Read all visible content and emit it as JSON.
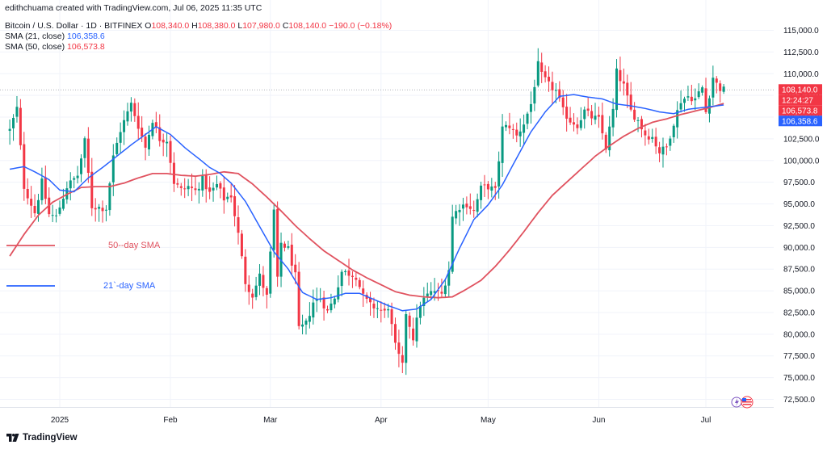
{
  "header": {
    "top_line": "edithchuama created with TradingView.com, Jul 06, 2025 11:35 UTC",
    "symbol": "Bitcoin / U.S. Dollar · 1D · BITFINEX",
    "ohlc": {
      "o_label": "O",
      "o": "108,340.0",
      "h_label": "H",
      "h": "108,380.0",
      "l_label": "L",
      "l": "107,980.0",
      "c_label": "C",
      "c": "108,140.0",
      "change": "−190.0 (−0.18%)"
    },
    "sma21_label": "SMA (21, close)",
    "sma21_value": "106,358.6",
    "sma50_label": "SMA (50, close)",
    "sma50_value": "106,573.8"
  },
  "annotations": {
    "sma50_text": "50--day SMA",
    "sma21_text": "21`-day SMA"
  },
  "price_badges": [
    {
      "text": "108,140.0",
      "bg": "#f23645",
      "fg": "#ffffff"
    },
    {
      "text": "12:24:27",
      "bg": "#f23645",
      "fg": "#ffffff"
    },
    {
      "text": "106,573.8",
      "bg": "#f23645",
      "fg": "#ffffff"
    },
    {
      "text": "106,358.6",
      "bg": "#2962ff",
      "fg": "#ffffff"
    }
  ],
  "footer": {
    "brand": "TradingView"
  },
  "colors": {
    "up": "#089981",
    "down": "#f23645",
    "sma21": "#2962ff",
    "sma50": "#e0525f",
    "grid": "#f0f3fa"
  },
  "chart_data": {
    "type": "candlestick",
    "title": "Bitcoin / U.S. Dollar · 1D · BITFINEX",
    "ylim": [
      70500,
      117000
    ],
    "y_ticks": [
      72500,
      75000,
      77500,
      80000,
      82500,
      85000,
      87500,
      90000,
      92500,
      95000,
      97500,
      100000,
      102500,
      105000,
      107500,
      110000,
      112500,
      115000
    ],
    "y_tick_labels": [
      "72,500.0",
      "75,000.0",
      "77,500.0",
      "80,000.0",
      "82,500.0",
      "85,000.0",
      "87,500.0",
      "90,000.0",
      "92,500.0",
      "95,000.0",
      "97,500.0",
      "100,000.0",
      "102,500.0",
      "105,000.0",
      "107,500.0",
      "110,000.0",
      "112,500.0",
      "115,000.0"
    ],
    "x_labels": [
      {
        "label": "2025",
        "day": 0
      },
      {
        "label": "Feb",
        "day": 31
      },
      {
        "label": "Mar",
        "day": 59
      },
      {
        "label": "Apr",
        "day": 90
      },
      {
        "label": "May",
        "day": 120
      },
      {
        "label": "Jun",
        "day": 151
      },
      {
        "label": "Jul",
        "day": 181
      }
    ],
    "start_day": -14,
    "end_day": 186,
    "last_price": 108140,
    "close_anchors": [
      [
        -14,
        103500
      ],
      [
        -12,
        106000
      ],
      [
        -10,
        97000
      ],
      [
        -7,
        94000
      ],
      [
        -5,
        97500
      ],
      [
        -3,
        93800
      ],
      [
        -1,
        93500
      ],
      [
        2,
        97000
      ],
      [
        5,
        98300
      ],
      [
        7,
        102200
      ],
      [
        9,
        94700
      ],
      [
        11,
        94600
      ],
      [
        13,
        94500
      ],
      [
        15,
        100400
      ],
      [
        17,
        103500
      ],
      [
        20,
        106500
      ],
      [
        22,
        104000
      ],
      [
        24,
        101500
      ],
      [
        26,
        104700
      ],
      [
        28,
        102500
      ],
      [
        30,
        102400
      ],
      [
        32,
        97500
      ],
      [
        34,
        96600
      ],
      [
        36,
        97000
      ],
      [
        38,
        96500
      ],
      [
        40,
        97800
      ],
      [
        42,
        96200
      ],
      [
        44,
        97200
      ],
      [
        46,
        95600
      ],
      [
        48,
        96000
      ],
      [
        50,
        91500
      ],
      [
        52,
        86000
      ],
      [
        54,
        84500
      ],
      [
        56,
        86700
      ],
      [
        58,
        84300
      ],
      [
        60,
        94200
      ],
      [
        61,
        86200
      ],
      [
        62,
        90500
      ],
      [
        64,
        89800
      ],
      [
        66,
        86700
      ],
      [
        67,
        80500
      ],
      [
        69,
        81200
      ],
      [
        71,
        83700
      ],
      [
        73,
        84200
      ],
      [
        75,
        82600
      ],
      [
        77,
        84300
      ],
      [
        79,
        87200
      ],
      [
        81,
        87000
      ],
      [
        83,
        86700
      ],
      [
        85,
        84300
      ],
      [
        87,
        83300
      ],
      [
        89,
        83000
      ],
      [
        91,
        82500
      ],
      [
        92,
        83200
      ],
      [
        94,
        78600
      ],
      [
        96,
        76300
      ],
      [
        97,
        82500
      ],
      [
        99,
        79600
      ],
      [
        101,
        83500
      ],
      [
        103,
        84500
      ],
      [
        105,
        85000
      ],
      [
        107,
        84600
      ],
      [
        109,
        87500
      ],
      [
        110,
        93500
      ],
      [
        112,
        94700
      ],
      [
        114,
        95000
      ],
      [
        116,
        94200
      ],
      [
        118,
        96800
      ],
      [
        120,
        97000
      ],
      [
        122,
        96500
      ],
      [
        124,
        103700
      ],
      [
        126,
        104000
      ],
      [
        128,
        102800
      ],
      [
        130,
        104300
      ],
      [
        132,
        106500
      ],
      [
        134,
        111000
      ],
      [
        135,
        109800
      ],
      [
        137,
        108700
      ],
      [
        139,
        108000
      ],
      [
        141,
        105700
      ],
      [
        143,
        104600
      ],
      [
        145,
        104100
      ],
      [
        147,
        105700
      ],
      [
        149,
        105000
      ],
      [
        151,
        104700
      ],
      [
        153,
        101500
      ],
      [
        155,
        105800
      ],
      [
        156,
        110200
      ],
      [
        158,
        108600
      ],
      [
        160,
        105700
      ],
      [
        162,
        104600
      ],
      [
        164,
        103000
      ],
      [
        166,
        102700
      ],
      [
        168,
        101000
      ],
      [
        170,
        101500
      ],
      [
        172,
        104400
      ],
      [
        174,
        106900
      ],
      [
        176,
        107400
      ],
      [
        178,
        107100
      ],
      [
        180,
        108400
      ],
      [
        181,
        105600
      ],
      [
        183,
        109600
      ],
      [
        184,
        108800
      ],
      [
        185,
        108300
      ],
      [
        186,
        108140
      ]
    ],
    "sma21_anchors": [
      [
        -14,
        99000
      ],
      [
        -10,
        99300
      ],
      [
        -7,
        98700
      ],
      [
        -3,
        97800
      ],
      [
        0,
        96600
      ],
      [
        4,
        96400
      ],
      [
        8,
        98000
      ],
      [
        12,
        99200
      ],
      [
        16,
        100500
      ],
      [
        20,
        101800
      ],
      [
        23,
        102700
      ],
      [
        27,
        103900
      ],
      [
        31,
        103000
      ],
      [
        35,
        101500
      ],
      [
        39,
        100200
      ],
      [
        42,
        99200
      ],
      [
        45,
        98500
      ],
      [
        48,
        97400
      ],
      [
        52,
        95300
      ],
      [
        56,
        92400
      ],
      [
        60,
        89500
      ],
      [
        64,
        87500
      ],
      [
        68,
        84800
      ],
      [
        72,
        84000
      ],
      [
        76,
        84200
      ],
      [
        80,
        84700
      ],
      [
        84,
        84700
      ],
      [
        88,
        84000
      ],
      [
        92,
        83300
      ],
      [
        96,
        82700
      ],
      [
        100,
        82900
      ],
      [
        104,
        84000
      ],
      [
        108,
        86300
      ],
      [
        112,
        89900
      ],
      [
        116,
        93200
      ],
      [
        120,
        94900
      ],
      [
        124,
        97200
      ],
      [
        128,
        100300
      ],
      [
        132,
        103300
      ],
      [
        136,
        105600
      ],
      [
        140,
        107400
      ],
      [
        144,
        107600
      ],
      [
        148,
        107300
      ],
      [
        152,
        107100
      ],
      [
        156,
        106500
      ],
      [
        160,
        106300
      ],
      [
        164,
        106000
      ],
      [
        168,
        105600
      ],
      [
        172,
        105400
      ],
      [
        176,
        105900
      ],
      [
        180,
        106100
      ],
      [
        186,
        106400
      ]
    ],
    "sma50_anchors": [
      [
        -14,
        89000
      ],
      [
        -10,
        91500
      ],
      [
        -6,
        93700
      ],
      [
        -2,
        95200
      ],
      [
        2,
        96100
      ],
      [
        6,
        96900
      ],
      [
        10,
        97000
      ],
      [
        14,
        97000
      ],
      [
        18,
        97400
      ],
      [
        22,
        98000
      ],
      [
        26,
        98500
      ],
      [
        30,
        98500
      ],
      [
        34,
        98300
      ],
      [
        38,
        98200
      ],
      [
        42,
        98400
      ],
      [
        46,
        98700
      ],
      [
        50,
        98500
      ],
      [
        54,
        97300
      ],
      [
        58,
        95800
      ],
      [
        62,
        94200
      ],
      [
        66,
        92500
      ],
      [
        70,
        91000
      ],
      [
        74,
        89600
      ],
      [
        78,
        88500
      ],
      [
        82,
        87400
      ],
      [
        86,
        86500
      ],
      [
        90,
        85700
      ],
      [
        94,
        84900
      ],
      [
        98,
        84500
      ],
      [
        102,
        84300
      ],
      [
        106,
        84200
      ],
      [
        110,
        84300
      ],
      [
        114,
        85200
      ],
      [
        118,
        86200
      ],
      [
        122,
        87800
      ],
      [
        126,
        89700
      ],
      [
        130,
        91800
      ],
      [
        134,
        94000
      ],
      [
        138,
        96000
      ],
      [
        142,
        97500
      ],
      [
        146,
        99000
      ],
      [
        150,
        100500
      ],
      [
        154,
        101700
      ],
      [
        158,
        102800
      ],
      [
        162,
        103700
      ],
      [
        166,
        104400
      ],
      [
        170,
        104800
      ],
      [
        174,
        105300
      ],
      [
        178,
        105700
      ],
      [
        182,
        106100
      ],
      [
        186,
        106574
      ]
    ]
  }
}
